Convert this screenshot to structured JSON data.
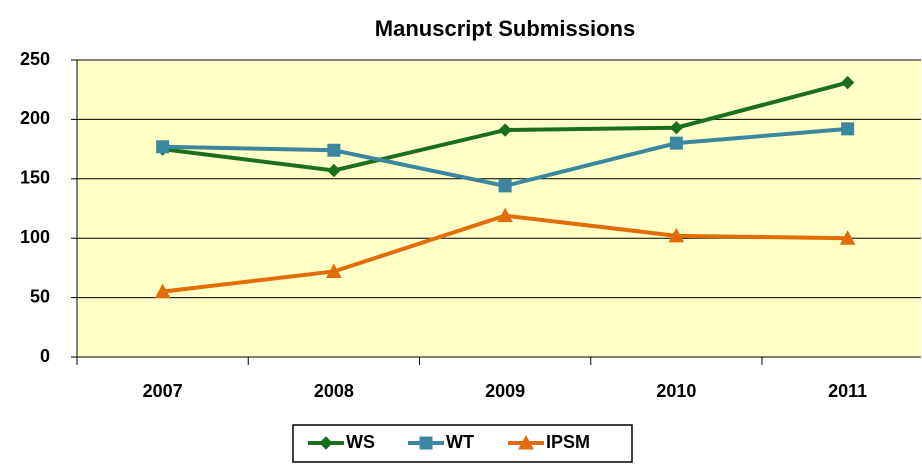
{
  "chart_data": {
    "type": "line",
    "title": "Manuscript Submissions",
    "categories": [
      "2007",
      "2008",
      "2009",
      "2010",
      "2011"
    ],
    "series": [
      {
        "name": "WS",
        "color": "#1a6f1a",
        "marker": "diamond",
        "values": [
          175,
          157,
          191,
          193,
          231
        ]
      },
      {
        "name": "WT",
        "color": "#3b87a1",
        "marker": "square",
        "values": [
          177,
          174,
          144,
          180,
          192
        ]
      },
      {
        "name": "IPSM",
        "color": "#e36c0a",
        "marker": "triangle",
        "values": [
          55,
          72,
          119,
          102,
          100
        ]
      }
    ],
    "ylim": [
      0,
      250
    ],
    "yticks": [
      0,
      50,
      100,
      150,
      200,
      250
    ],
    "grid": true,
    "plot_background": "#ffffc6",
    "legend": "bottom"
  }
}
